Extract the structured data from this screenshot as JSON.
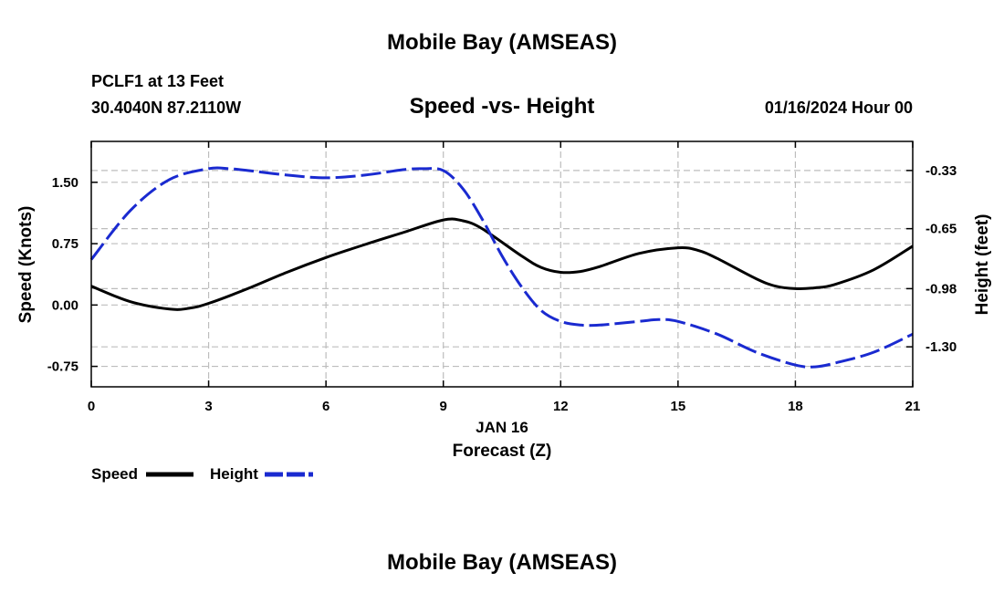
{
  "page": {
    "title_top": "Mobile Bay (AMSEAS)",
    "title_bottom": "Mobile Bay (AMSEAS)",
    "station_line1": "PCLF1 at 13 Feet",
    "station_line2": "30.4040N  87.2110W",
    "chart_title": "Speed -vs- Height",
    "date_label": "01/16/2024 Hour 00"
  },
  "chart_data": {
    "type": "line",
    "title": "Speed -vs- Height",
    "xlabel": "Forecast (Z)",
    "xlabel_date": "JAN 16",
    "ylabel": "Speed (Knots)",
    "y2label": "Height (feet)",
    "xlim": [
      0,
      21
    ],
    "ylim": [
      -1.0,
      2.0
    ],
    "y2lim": [
      -1.52,
      -0.17
    ],
    "x_ticks": [
      0,
      3,
      6,
      9,
      12,
      15,
      18,
      21
    ],
    "x_tick_labels": [
      "0",
      "3",
      "6",
      "9",
      "12",
      "15",
      "18",
      "21"
    ],
    "y_ticks": [
      -0.75,
      0.0,
      0.75,
      1.5
    ],
    "y_tick_labels": [
      "-0.75",
      "0.00",
      "0.75",
      "1.50"
    ],
    "y2_ticks": [
      -1.3,
      -0.98,
      -0.65,
      -0.33
    ],
    "y2_tick_labels": [
      "-1.30",
      "-0.98",
      "-0.65",
      "-0.33"
    ],
    "grid": true,
    "legend_position": "bottom-left",
    "series": [
      {
        "name": "Speed",
        "axis": "left",
        "color": "#000000",
        "dash": false,
        "x": [
          0,
          1,
          2,
          2.5,
          3,
          4,
          5,
          6,
          7,
          8,
          9,
          9.5,
          10,
          11,
          11.5,
          12,
          12.5,
          13,
          14,
          15,
          15.5,
          16,
          17,
          17.5,
          18,
          18.5,
          19,
          20,
          21
        ],
        "values": [
          0.23,
          0.04,
          -0.05,
          -0.04,
          0.02,
          0.2,
          0.4,
          0.58,
          0.74,
          0.89,
          1.04,
          1.03,
          0.93,
          0.6,
          0.46,
          0.4,
          0.41,
          0.47,
          0.63,
          0.7,
          0.67,
          0.57,
          0.32,
          0.23,
          0.2,
          0.21,
          0.25,
          0.43,
          0.72
        ]
      },
      {
        "name": "Height",
        "axis": "right",
        "color": "#1a2ad0",
        "dash": true,
        "x": [
          0,
          1,
          2,
          3,
          3.5,
          4,
          5,
          6,
          7,
          8,
          8.5,
          9,
          9.5,
          10,
          10.5,
          11,
          11.5,
          12,
          12.5,
          13,
          14,
          14.5,
          15,
          16,
          17,
          18,
          18.5,
          19,
          20,
          21
        ],
        "values": [
          -0.82,
          -0.55,
          -0.38,
          -0.32,
          -0.32,
          -0.33,
          -0.355,
          -0.37,
          -0.355,
          -0.325,
          -0.32,
          -0.33,
          -0.43,
          -0.6,
          -0.8,
          -0.97,
          -1.1,
          -1.16,
          -1.18,
          -1.18,
          -1.16,
          -1.15,
          -1.16,
          -1.23,
          -1.33,
          -1.4,
          -1.41,
          -1.39,
          -1.33,
          -1.23
        ]
      }
    ]
  }
}
